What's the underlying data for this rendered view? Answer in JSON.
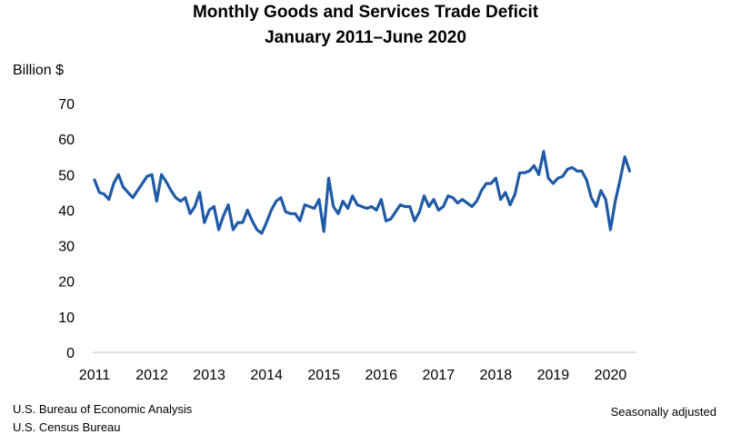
{
  "chart_data": {
    "type": "line",
    "title": "Monthly Goods and Services Trade Deficit",
    "subtitle": "January 2011–June 2020",
    "ylabel": "Billion $",
    "xlabel": "",
    "ylim": [
      0,
      70
    ],
    "yticks": [
      0,
      10,
      20,
      30,
      40,
      50,
      60,
      70
    ],
    "xticks": [
      "2011",
      "2012",
      "2013",
      "2014",
      "2015",
      "2016",
      "2017",
      "2018",
      "2019",
      "2020"
    ],
    "grid": false,
    "legend": "none",
    "color": "#1f5aa6",
    "x_start": "2011-01",
    "x_end": "2020-06",
    "series": [
      {
        "values": [
          48.5,
          45.0,
          44.5,
          43.0,
          47.5,
          50.0,
          46.5,
          45.0,
          43.5,
          45.5,
          47.5,
          49.5,
          50.0,
          42.5,
          50.0,
          48.0,
          45.5,
          43.5,
          42.5,
          43.5,
          39.0,
          41.0,
          45.0,
          36.5,
          40.0,
          41.0,
          34.5,
          38.5,
          41.5,
          34.5,
          36.5,
          36.5,
          40.0,
          37.0,
          34.5,
          33.5,
          36.5,
          40.0,
          42.5,
          43.5,
          39.5,
          39.0,
          39.0,
          37.0,
          41.5,
          41.0,
          40.5,
          43.0,
          34.0,
          49.0,
          41.0,
          39.0,
          42.5,
          40.5,
          44.0,
          41.5,
          41.0,
          40.5,
          41.0,
          40.0,
          43.0,
          37.0,
          37.5,
          39.5,
          41.5,
          41.0,
          41.0,
          37.0,
          39.5,
          44.0,
          41.0,
          43.0,
          40.0,
          41.0,
          44.0,
          43.5,
          42.0,
          43.0,
          42.0,
          41.0,
          42.5,
          45.5,
          47.5,
          47.5,
          49.0,
          43.0,
          45.0,
          41.5,
          44.5,
          50.5,
          50.5,
          51.0,
          52.5,
          50.0,
          56.5,
          49.0,
          47.5,
          49.0,
          49.5,
          51.5,
          52.0,
          51.0,
          51.0,
          48.5,
          43.5,
          41.0,
          45.5,
          43.0,
          34.5,
          42.5,
          48.5,
          55.0,
          51.0
        ]
      }
    ]
  },
  "footer": {
    "source_line1": "U.S. Bureau of Economic Analysis",
    "source_line2": "U.S. Census Bureau",
    "note": "Seasonally adjusted"
  }
}
